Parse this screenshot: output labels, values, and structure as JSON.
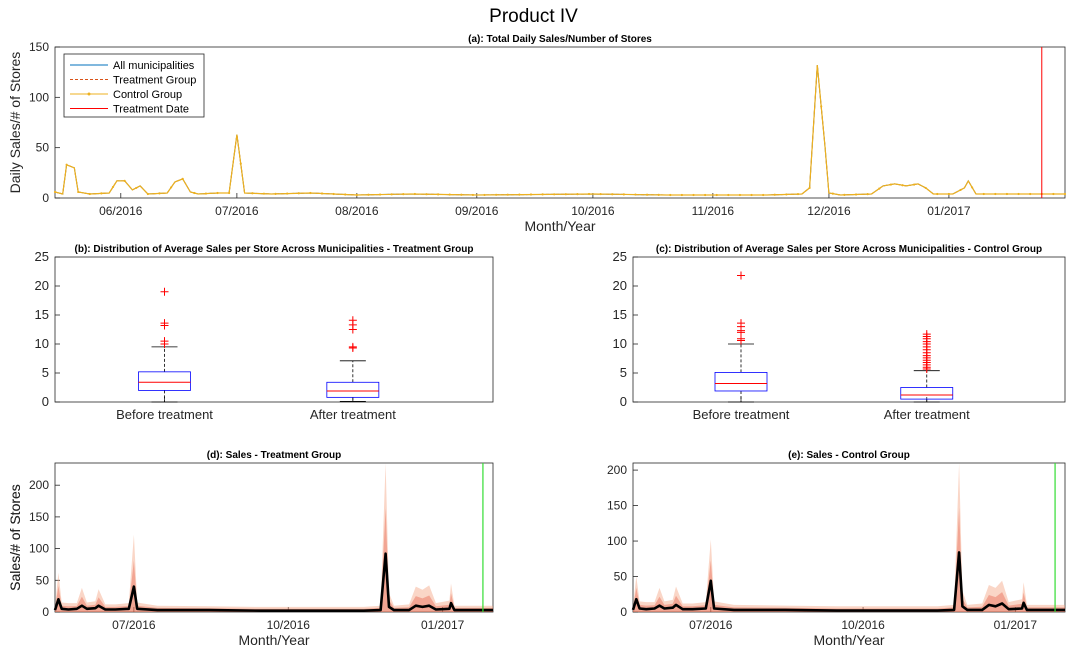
{
  "figure": {
    "title": "Product IV"
  },
  "chart_data": [
    {
      "id": "a",
      "type": "line",
      "title": "(a): Total Daily Sales/Number of Stores",
      "xlabel": "Month/Year",
      "ylabel": "Daily Sales/# of Stores",
      "x_start": "2016-05-15",
      "x_end": "2017-01-31",
      "ylim": [
        0,
        150
      ],
      "yticks": [
        0,
        50,
        100,
        150
      ],
      "xtick_labels": [
        {
          "date": "2016-06-01",
          "label": "06/2016"
        },
        {
          "date": "2016-07-01",
          "label": "07/2016"
        },
        {
          "date": "2016-08-01",
          "label": "08/2016"
        },
        {
          "date": "2016-09-01",
          "label": "09/2016"
        },
        {
          "date": "2016-10-01",
          "label": "10/2016"
        },
        {
          "date": "2016-11-01",
          "label": "11/2016"
        },
        {
          "date": "2016-12-01",
          "label": "12/2016"
        },
        {
          "date": "2017-01-01",
          "label": "01/2017"
        }
      ],
      "legend": {
        "placement": "top-left",
        "entries": [
          "All municipalities",
          "Treatment Group",
          "Control Group",
          "Treatment Date"
        ]
      },
      "baseline_value": 4,
      "series": [
        {
          "name": "All municipalities",
          "color": "#0072BD",
          "points": [
            [
              "2016-05-15",
              6
            ],
            [
              "2016-05-17",
              4
            ],
            [
              "2016-05-18",
              33
            ],
            [
              "2016-05-20",
              30
            ],
            [
              "2016-05-21",
              6
            ],
            [
              "2016-05-24",
              4
            ],
            [
              "2016-05-29",
              5
            ],
            [
              "2016-05-31",
              17
            ],
            [
              "2016-06-02",
              17
            ],
            [
              "2016-06-04",
              8
            ],
            [
              "2016-06-06",
              12
            ],
            [
              "2016-06-08",
              4
            ],
            [
              "2016-06-13",
              5
            ],
            [
              "2016-06-15",
              16
            ],
            [
              "2016-06-17",
              19
            ],
            [
              "2016-06-19",
              6
            ],
            [
              "2016-06-21",
              4
            ],
            [
              "2016-06-26",
              5
            ],
            [
              "2016-06-29",
              5
            ],
            [
              "2016-07-01",
              63
            ],
            [
              "2016-07-03",
              5
            ],
            [
              "2016-07-10",
              4
            ],
            [
              "2016-07-20",
              5
            ],
            [
              "2016-08-01",
              3
            ],
            [
              "2016-08-15",
              4
            ],
            [
              "2016-09-01",
              3
            ],
            [
              "2016-10-01",
              4
            ],
            [
              "2016-10-20",
              3
            ],
            [
              "2016-11-15",
              3
            ],
            [
              "2016-11-24",
              4
            ],
            [
              "2016-11-26",
              10
            ],
            [
              "2016-11-28",
              132
            ],
            [
              "2016-11-30",
              50
            ],
            [
              "2016-12-01",
              5
            ],
            [
              "2016-12-04",
              3
            ],
            [
              "2016-12-12",
              4
            ],
            [
              "2016-12-15",
              12
            ],
            [
              "2016-12-18",
              14
            ],
            [
              "2016-12-21",
              12
            ],
            [
              "2016-12-24",
              14
            ],
            [
              "2016-12-26",
              10
            ],
            [
              "2016-12-28",
              4
            ],
            [
              "2017-01-02",
              4
            ],
            [
              "2017-01-05",
              10
            ],
            [
              "2017-01-06",
              17
            ],
            [
              "2017-01-08",
              4
            ],
            [
              "2017-01-15",
              4
            ],
            [
              "2017-01-31",
              4
            ]
          ]
        },
        {
          "name": "Treatment Group",
          "color": "#D95319",
          "dashed": true,
          "same_as": "All municipalities"
        },
        {
          "name": "Control Group",
          "color": "#EDB120",
          "marker": "dot",
          "same_as": "All municipalities"
        },
        {
          "name": "Treatment Date",
          "color": "#FF0000",
          "vline_date": "2017-01-25"
        }
      ]
    },
    {
      "id": "b",
      "type": "box",
      "title": "(b): Distribution of Average Sales per Store Across Municipalities - Treatment Group",
      "categories": [
        "Before treatment",
        "After treatment"
      ],
      "ylim": [
        0,
        25
      ],
      "yticks": [
        0,
        5,
        10,
        15,
        20,
        25
      ],
      "boxes": [
        {
          "min": 0,
          "q1": 2.0,
          "median": 3.4,
          "q3": 5.2,
          "max": 9.5,
          "outliers": [
            10.0,
            10.5,
            13.2,
            13.6,
            19.0
          ]
        },
        {
          "min": 0.1,
          "q1": 0.8,
          "median": 1.9,
          "q3": 3.4,
          "max": 7.1,
          "outliers": [
            9.3,
            9.5,
            12.5,
            13.3,
            14.1
          ]
        }
      ]
    },
    {
      "id": "c",
      "type": "box",
      "title": "(c): Distribution of Average Sales per Store Across Municipalities - Control Group",
      "categories": [
        "Before treatment",
        "After treatment"
      ],
      "ylim": [
        0,
        25
      ],
      "yticks": [
        0,
        5,
        10,
        15,
        20,
        25
      ],
      "boxes": [
        {
          "min": 0,
          "q1": 1.9,
          "median": 3.2,
          "q3": 5.1,
          "max": 10.0,
          "outliers": [
            10.6,
            10.9,
            12.0,
            12.3,
            13.0,
            13.6,
            21.8
          ]
        },
        {
          "min": 0,
          "q1": 0.5,
          "median": 1.2,
          "q3": 2.5,
          "max": 5.4,
          "outliers": [
            5.7,
            6.0,
            6.4,
            6.8,
            7.2,
            7.6,
            8.0,
            8.5,
            9.0,
            9.5,
            10.0,
            10.4,
            10.9,
            11.3,
            11.7
          ]
        }
      ]
    },
    {
      "id": "d",
      "type": "line",
      "title": "(d): Sales - Treatment Group",
      "xlabel": "Month/Year",
      "ylabel": "Sales/# of Stores",
      "x_start": "2016-05-15",
      "x_end": "2017-01-31",
      "ylim": [
        0,
        235
      ],
      "yticks": [
        0,
        50,
        100,
        150,
        200
      ],
      "xtick_labels": [
        {
          "date": "2016-07-01",
          "label": "07/2016"
        },
        {
          "date": "2016-10-01",
          "label": "10/2016"
        },
        {
          "date": "2017-01-01",
          "label": "01/2017"
        }
      ],
      "treatment_date": "2017-01-25",
      "series": [
        {
          "name": "mean",
          "color": "#000000",
          "points": [
            [
              "2016-05-15",
              3
            ],
            [
              "2016-05-17",
              20
            ],
            [
              "2016-05-19",
              5
            ],
            [
              "2016-05-23",
              4
            ],
            [
              "2016-05-28",
              5
            ],
            [
              "2016-05-31",
              10
            ],
            [
              "2016-06-03",
              5
            ],
            [
              "2016-06-08",
              6
            ],
            [
              "2016-06-10",
              10
            ],
            [
              "2016-06-14",
              4
            ],
            [
              "2016-06-20",
              4
            ],
            [
              "2016-06-28",
              5
            ],
            [
              "2016-07-01",
              40
            ],
            [
              "2016-07-03",
              5
            ],
            [
              "2016-07-15",
              3
            ],
            [
              "2016-08-15",
              3
            ],
            [
              "2016-09-15",
              2
            ],
            [
              "2016-10-15",
              2
            ],
            [
              "2016-11-15",
              2
            ],
            [
              "2016-11-25",
              3
            ],
            [
              "2016-11-28",
              92
            ],
            [
              "2016-11-30",
              8
            ],
            [
              "2016-12-03",
              3
            ],
            [
              "2016-12-12",
              3
            ],
            [
              "2016-12-16",
              10
            ],
            [
              "2016-12-20",
              8
            ],
            [
              "2016-12-24",
              10
            ],
            [
              "2016-12-28",
              4
            ],
            [
              "2017-01-05",
              5
            ],
            [
              "2017-01-06",
              14
            ],
            [
              "2017-01-08",
              3
            ],
            [
              "2017-01-31",
              3
            ]
          ]
        },
        {
          "name": "envelope",
          "color": "#F4A582",
          "points": [
            [
              "2016-05-15",
              8
            ],
            [
              "2016-05-17",
              62
            ],
            [
              "2016-05-19",
              15
            ],
            [
              "2016-05-23",
              14
            ],
            [
              "2016-05-28",
              14
            ],
            [
              "2016-05-31",
              38
            ],
            [
              "2016-06-03",
              15
            ],
            [
              "2016-06-08",
              17
            ],
            [
              "2016-06-10",
              36
            ],
            [
              "2016-06-14",
              12
            ],
            [
              "2016-06-20",
              12
            ],
            [
              "2016-06-28",
              14
            ],
            [
              "2016-07-01",
              122
            ],
            [
              "2016-07-03",
              15
            ],
            [
              "2016-07-15",
              10
            ],
            [
              "2016-08-15",
              9
            ],
            [
              "2016-09-15",
              8
            ],
            [
              "2016-10-15",
              8
            ],
            [
              "2016-11-15",
              8
            ],
            [
              "2016-11-25",
              10
            ],
            [
              "2016-11-28",
              235
            ],
            [
              "2016-11-30",
              30
            ],
            [
              "2016-12-03",
              10
            ],
            [
              "2016-12-12",
              12
            ],
            [
              "2016-12-16",
              40
            ],
            [
              "2016-12-20",
              35
            ],
            [
              "2016-12-24",
              42
            ],
            [
              "2016-12-28",
              14
            ],
            [
              "2017-01-05",
              18
            ],
            [
              "2017-01-06",
              45
            ],
            [
              "2017-01-08",
              10
            ],
            [
              "2017-01-31",
              10
            ]
          ]
        }
      ]
    },
    {
      "id": "e",
      "type": "line",
      "title": "(e): Sales - Control Group",
      "xlabel": "Month/Year",
      "ylabel": "Sales/# of Stores",
      "x_start": "2016-05-15",
      "x_end": "2017-01-31",
      "ylim": [
        0,
        210
      ],
      "yticks": [
        0,
        50,
        100,
        150,
        200
      ],
      "xtick_labels": [
        {
          "date": "2016-07-01",
          "label": "07/2016"
        },
        {
          "date": "2016-10-01",
          "label": "10/2016"
        },
        {
          "date": "2017-01-01",
          "label": "01/2017"
        }
      ],
      "treatment_date": "2017-01-25",
      "series": [
        {
          "name": "mean",
          "color": "#000000",
          "points": [
            [
              "2016-05-15",
              3
            ],
            [
              "2016-05-17",
              18
            ],
            [
              "2016-05-19",
              5
            ],
            [
              "2016-05-23",
              4
            ],
            [
              "2016-05-28",
              5
            ],
            [
              "2016-05-31",
              9
            ],
            [
              "2016-06-03",
              5
            ],
            [
              "2016-06-08",
              6
            ],
            [
              "2016-06-10",
              10
            ],
            [
              "2016-06-14",
              4
            ],
            [
              "2016-06-20",
              4
            ],
            [
              "2016-06-28",
              5
            ],
            [
              "2016-07-01",
              44
            ],
            [
              "2016-07-03",
              5
            ],
            [
              "2016-07-15",
              3
            ],
            [
              "2016-08-15",
              3
            ],
            [
              "2016-09-15",
              2
            ],
            [
              "2016-10-15",
              2
            ],
            [
              "2016-11-15",
              2
            ],
            [
              "2016-11-25",
              3
            ],
            [
              "2016-11-28",
              84
            ],
            [
              "2016-11-30",
              8
            ],
            [
              "2016-12-03",
              3
            ],
            [
              "2016-12-12",
              3
            ],
            [
              "2016-12-16",
              10
            ],
            [
              "2016-12-20",
              8
            ],
            [
              "2016-12-24",
              12
            ],
            [
              "2016-12-28",
              4
            ],
            [
              "2017-01-05",
              5
            ],
            [
              "2017-01-06",
              13
            ],
            [
              "2017-01-08",
              3
            ],
            [
              "2017-01-31",
              3
            ]
          ]
        },
        {
          "name": "envelope",
          "color": "#F4A582",
          "points": [
            [
              "2016-05-15",
              8
            ],
            [
              "2016-05-17",
              50
            ],
            [
              "2016-05-19",
              15
            ],
            [
              "2016-05-23",
              14
            ],
            [
              "2016-05-28",
              14
            ],
            [
              "2016-05-31",
              34
            ],
            [
              "2016-06-03",
              15
            ],
            [
              "2016-06-08",
              17
            ],
            [
              "2016-06-10",
              36
            ],
            [
              "2016-06-14",
              12
            ],
            [
              "2016-06-20",
              12
            ],
            [
              "2016-06-28",
              14
            ],
            [
              "2016-07-01",
              102
            ],
            [
              "2016-07-03",
              15
            ],
            [
              "2016-07-15",
              10
            ],
            [
              "2016-08-15",
              9
            ],
            [
              "2016-09-15",
              8
            ],
            [
              "2016-10-15",
              8
            ],
            [
              "2016-11-15",
              8
            ],
            [
              "2016-11-25",
              10
            ],
            [
              "2016-11-28",
              210
            ],
            [
              "2016-11-30",
              30
            ],
            [
              "2016-12-03",
              10
            ],
            [
              "2016-12-12",
              12
            ],
            [
              "2016-12-16",
              38
            ],
            [
              "2016-12-20",
              34
            ],
            [
              "2016-12-24",
              44
            ],
            [
              "2016-12-28",
              14
            ],
            [
              "2017-01-05",
              18
            ],
            [
              "2017-01-06",
              42
            ],
            [
              "2017-01-08",
              10
            ],
            [
              "2017-01-31",
              10
            ]
          ]
        }
      ]
    }
  ]
}
